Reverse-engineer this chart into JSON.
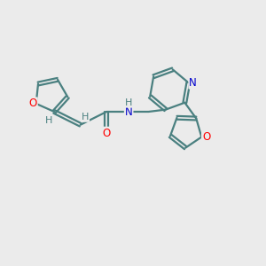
{
  "bg_color": "#ebebeb",
  "bond_color": "#4a8080",
  "bond_width": 1.6,
  "atom_colors": {
    "O": "#ff0000",
    "N": "#0000cc",
    "H": "#4a8080",
    "C": "#333333"
  },
  "figsize": [
    3.0,
    3.0
  ],
  "dpi": 100,
  "xlim": [
    0,
    10
  ],
  "ylim": [
    0,
    10
  ]
}
